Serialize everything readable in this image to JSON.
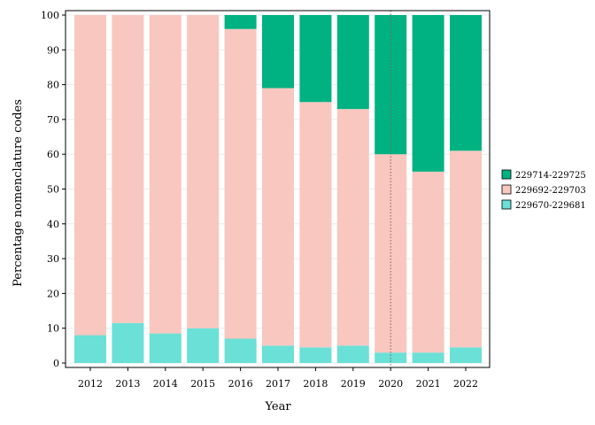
{
  "chart_data": {
    "type": "bar",
    "stacked": true,
    "categories": [
      "2012",
      "2013",
      "2014",
      "2015",
      "2016",
      "2017",
      "2018",
      "2019",
      "2020",
      "2021",
      "2022"
    ],
    "series": [
      {
        "name": "229670-229681",
        "color": "#6ae0d6",
        "values": [
          8,
          11.5,
          8.5,
          10,
          7,
          5,
          4.5,
          5,
          3,
          3,
          4.5
        ]
      },
      {
        "name": "229692-229703",
        "color": "#f8c7bf",
        "values": [
          92,
          88.5,
          91.5,
          90,
          89,
          74,
          70.5,
          68,
          57,
          52,
          56.5
        ]
      },
      {
        "name": "229714-229725",
        "color": "#00b281",
        "values": [
          0,
          0,
          0,
          0,
          4,
          21,
          25,
          27,
          40,
          45,
          39
        ]
      }
    ],
    "xlabel": "Year",
    "ylabel": "Percentage nomenclature codes",
    "ylim": [
      0,
      100
    ],
    "yticks": [
      0,
      10,
      20,
      30,
      40,
      50,
      60,
      70,
      80,
      90,
      100
    ],
    "reference_line": {
      "x": "2020",
      "style": "dotted"
    },
    "legend": {
      "placement": "right",
      "order": [
        "229714-229725",
        "229692-229703",
        "229670-229681"
      ]
    },
    "grid": false
  }
}
